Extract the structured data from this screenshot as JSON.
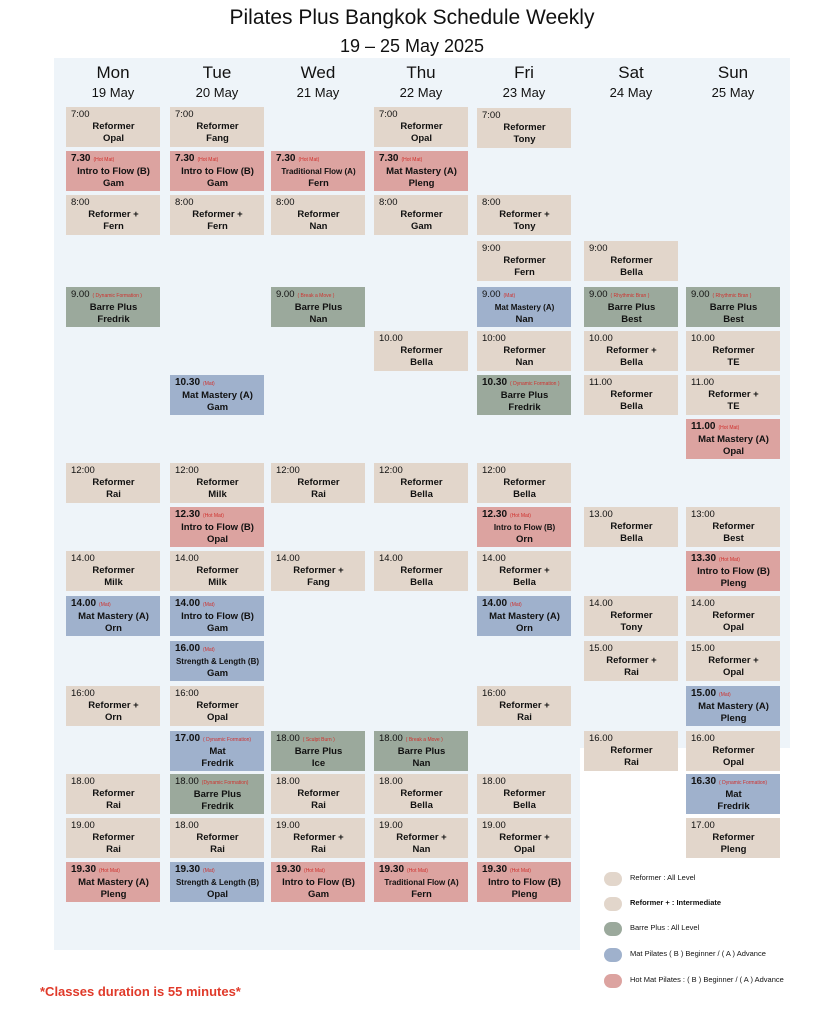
{
  "title": "Pilates Plus Bangkok Schedule Weekly",
  "subtitle": "19 – 25  May 2025",
  "days": [
    {
      "name": "Mon",
      "date": "19 May"
    },
    {
      "name": "Tue",
      "date": "20 May"
    },
    {
      "name": "Wed",
      "date": "21 May"
    },
    {
      "name": "Thu",
      "date": "22 May"
    },
    {
      "name": "Fri",
      "date": "23 May"
    },
    {
      "name": "Sat",
      "date": "24 May"
    },
    {
      "name": "Sun",
      "date": "25 May"
    }
  ],
  "classes": [
    {
      "day": 0,
      "time": "7:00",
      "bold": false,
      "tag": "",
      "name": "Reformer",
      "instructor": "Opal",
      "kind": "ref"
    },
    {
      "day": 0,
      "time": "7.30",
      "bold": true,
      "tag": "(Hot Mat)",
      "name": "Intro to Flow (B)",
      "instructor": "Gam",
      "kind": "hot"
    },
    {
      "day": 0,
      "time": "8:00",
      "bold": false,
      "tag": "",
      "name": "Reformer +",
      "instructor": "Fern",
      "kind": "rplus"
    },
    {
      "day": 0,
      "time": "9.00",
      "bold": false,
      "tag": "( Dynamic Formation )",
      "name": "Barre Plus",
      "instructor": "Fredrik",
      "kind": "barre"
    },
    {
      "day": 0,
      "time": "12:00",
      "bold": false,
      "tag": "",
      "name": "Reformer",
      "instructor": "Rai",
      "kind": "ref"
    },
    {
      "day": 0,
      "time": "14.00",
      "bold": false,
      "tag": "",
      "name": "Reformer",
      "instructor": "Milk",
      "kind": "ref"
    },
    {
      "day": 0,
      "time": "14.00",
      "bold": true,
      "tag": "(Mat)",
      "name": "Mat Mastery (A)",
      "instructor": "Orn",
      "kind": "mat"
    },
    {
      "day": 0,
      "time": "16:00",
      "bold": false,
      "tag": "",
      "name": "Reformer +",
      "instructor": "Orn",
      "kind": "rplus"
    },
    {
      "day": 0,
      "time": "18.00",
      "bold": false,
      "tag": "",
      "name": "Reformer",
      "instructor": "Rai",
      "kind": "ref"
    },
    {
      "day": 0,
      "time": "19.00",
      "bold": false,
      "tag": "",
      "name": "Reformer",
      "instructor": "Rai",
      "kind": "ref"
    },
    {
      "day": 0,
      "time": "19.30",
      "bold": true,
      "tag": "(Hot Mat)",
      "name": "Mat Mastery (A)",
      "instructor": "Pleng",
      "kind": "hot"
    },
    {
      "day": 1,
      "time": "7:00",
      "bold": false,
      "tag": "",
      "name": "Reformer",
      "instructor": "Fang",
      "kind": "ref"
    },
    {
      "day": 1,
      "time": "7.30",
      "bold": true,
      "tag": "(Hot Mat)",
      "name": "Intro to Flow (B)",
      "instructor": "Gam",
      "kind": "hot"
    },
    {
      "day": 1,
      "time": "8:00",
      "bold": false,
      "tag": "",
      "name": "Reformer +",
      "instructor": "Fern",
      "kind": "rplus"
    },
    {
      "day": 1,
      "time": "10.30",
      "bold": true,
      "tag": "(Mat)",
      "name": "Mat Mastery (A)",
      "instructor": "Gam",
      "kind": "mat"
    },
    {
      "day": 1,
      "time": "12:00",
      "bold": false,
      "tag": "",
      "name": "Reformer",
      "instructor": "Milk",
      "kind": "ref"
    },
    {
      "day": 1,
      "time": "12.30",
      "bold": true,
      "tag": "(Hot Mat)",
      "name": "Intro to Flow (B)",
      "instructor": "Opal",
      "kind": "hot"
    },
    {
      "day": 1,
      "time": "14.00",
      "bold": false,
      "tag": "",
      "name": "Reformer",
      "instructor": "Milk",
      "kind": "ref"
    },
    {
      "day": 1,
      "time": "14.00",
      "bold": true,
      "tag": "(Mat)",
      "name": "Intro to Flow (B)",
      "instructor": "Gam",
      "kind": "mat"
    },
    {
      "day": 1,
      "time": "16.00",
      "bold": true,
      "tag": "(Mat)",
      "name": "Strength & Length (B)",
      "instructor": "Gam",
      "kind": "mat",
      "small": true
    },
    {
      "day": 1,
      "time": "16:00",
      "bold": false,
      "tag": "",
      "name": "Reformer",
      "instructor": "Opal",
      "kind": "ref"
    },
    {
      "day": 1,
      "time": "17.00",
      "bold": true,
      "tag": "( Dynamic Formation)",
      "name": "Mat",
      "instructor": "Fredrik",
      "kind": "mat"
    },
    {
      "day": 1,
      "time": "18.00",
      "bold": false,
      "tag": "(Dynamic Formation)",
      "name": "Barre Plus",
      "instructor": "Fredrik",
      "kind": "barre"
    },
    {
      "day": 1,
      "time": "18.00",
      "bold": false,
      "tag": "",
      "name": "Reformer",
      "instructor": "Rai",
      "kind": "ref"
    },
    {
      "day": 1,
      "time": "19.30",
      "bold": true,
      "tag": "(Mat)",
      "name": "Strength & Length (B)",
      "instructor": "Opal",
      "kind": "mat",
      "small": true
    },
    {
      "day": 2,
      "time": "7.30",
      "bold": true,
      "tag": "(Hot Mat)",
      "name": "Traditional Flow (A)",
      "instructor": "Fern",
      "kind": "hot",
      "small": true
    },
    {
      "day": 2,
      "time": "8:00",
      "bold": false,
      "tag": "",
      "name": "Reformer",
      "instructor": "Nan",
      "kind": "ref"
    },
    {
      "day": 2,
      "time": "9.00",
      "bold": false,
      "tag": "( Break a Move )",
      "name": "Barre Plus",
      "instructor": "Nan",
      "kind": "barre"
    },
    {
      "day": 2,
      "time": "12:00",
      "bold": false,
      "tag": "",
      "name": "Reformer",
      "instructor": "Rai",
      "kind": "ref"
    },
    {
      "day": 2,
      "time": "14.00",
      "bold": false,
      "tag": "",
      "name": "Reformer +",
      "instructor": "Fang",
      "kind": "rplus"
    },
    {
      "day": 2,
      "time": "18.00",
      "bold": false,
      "tag": "( Sculpt Burn )",
      "name": "Barre Plus",
      "instructor": "Ice",
      "kind": "barre"
    },
    {
      "day": 2,
      "time": "18.00",
      "bold": false,
      "tag": "",
      "name": "Reformer",
      "instructor": "Rai",
      "kind": "ref"
    },
    {
      "day": 2,
      "time": "19.00",
      "bold": false,
      "tag": "",
      "name": "Reformer +",
      "instructor": "Rai",
      "kind": "rplus"
    },
    {
      "day": 2,
      "time": "19.30",
      "bold": true,
      "tag": "(Hot Mat)",
      "name": "Intro to Flow (B)",
      "instructor": "Gam",
      "kind": "hot"
    },
    {
      "day": 3,
      "time": "7:00",
      "bold": false,
      "tag": "",
      "name": "Reformer",
      "instructor": "Opal",
      "kind": "ref"
    },
    {
      "day": 3,
      "time": "7.30",
      "bold": true,
      "tag": "(Hot Mat)",
      "name": "Mat Mastery (A)",
      "instructor": "Pleng",
      "kind": "hot"
    },
    {
      "day": 3,
      "time": "8:00",
      "bold": false,
      "tag": "",
      "name": "Reformer",
      "instructor": "Gam",
      "kind": "ref"
    },
    {
      "day": 3,
      "time": "10.00",
      "bold": false,
      "tag": "",
      "name": "Reformer",
      "instructor": "Bella",
      "kind": "ref"
    },
    {
      "day": 3,
      "time": "12:00",
      "bold": false,
      "tag": "",
      "name": "Reformer",
      "instructor": "Bella",
      "kind": "ref"
    },
    {
      "day": 3,
      "time": "14.00",
      "bold": false,
      "tag": "",
      "name": "Reformer",
      "instructor": "Bella",
      "kind": "ref"
    },
    {
      "day": 3,
      "time": "18.00",
      "bold": false,
      "tag": "( Break a Move )",
      "name": "Barre Plus",
      "instructor": "Nan",
      "kind": "barre"
    },
    {
      "day": 3,
      "time": "18.00",
      "bold": false,
      "tag": "",
      "name": "Reformer",
      "instructor": "Bella",
      "kind": "ref"
    },
    {
      "day": 3,
      "time": "19.00",
      "bold": false,
      "tag": "",
      "name": "Reformer +",
      "instructor": "Nan",
      "kind": "rplus"
    },
    {
      "day": 3,
      "time": "19.30",
      "bold": true,
      "tag": "(Hot Mat)",
      "name": "Traditional Flow (A)",
      "instructor": "Fern",
      "kind": "hot",
      "small": true
    },
    {
      "day": 4,
      "time": "7:00",
      "bold": false,
      "tag": "",
      "name": "Reformer",
      "instructor": "Tony",
      "kind": "ref"
    },
    {
      "day": 4,
      "time": "8:00",
      "bold": false,
      "tag": "",
      "name": "Reformer +",
      "instructor": "Tony",
      "kind": "rplus"
    },
    {
      "day": 4,
      "time": "9:00",
      "bold": false,
      "tag": "",
      "name": "Reformer",
      "instructor": "Fern",
      "kind": "ref"
    },
    {
      "day": 4,
      "time": "9.00",
      "bold": false,
      "tag": "(Mat)",
      "name": "Mat Mastery (A)",
      "instructor": "Nan",
      "kind": "mat",
      "small": true
    },
    {
      "day": 4,
      "time": "10:00",
      "bold": false,
      "tag": "",
      "name": "Reformer",
      "instructor": "Nan",
      "kind": "ref"
    },
    {
      "day": 4,
      "time": "10.30",
      "bold": true,
      "tag": "( Dynamic Formation )",
      "name": "Barre Plus",
      "instructor": "Fredrik",
      "kind": "barre"
    },
    {
      "day": 4,
      "time": "12:00",
      "bold": false,
      "tag": "",
      "name": "Reformer",
      "instructor": "Bella",
      "kind": "ref"
    },
    {
      "day": 4,
      "time": "12.30",
      "bold": true,
      "tag": "(Hot Mat)",
      "name": "Intro to Flow (B)",
      "instructor": "Orn",
      "kind": "hot",
      "small": true
    },
    {
      "day": 4,
      "time": "14.00",
      "bold": false,
      "tag": "",
      "name": "Reformer +",
      "instructor": "Bella",
      "kind": "rplus"
    },
    {
      "day": 4,
      "time": "14.00",
      "bold": true,
      "tag": "(Mat)",
      "name": "Mat Mastery (A)",
      "instructor": "Orn",
      "kind": "mat"
    },
    {
      "day": 4,
      "time": "16:00",
      "bold": false,
      "tag": "",
      "name": "Reformer +",
      "instructor": "Rai",
      "kind": "rplus"
    },
    {
      "day": 4,
      "time": "18.00",
      "bold": false,
      "tag": "",
      "name": "Reformer",
      "instructor": "Bella",
      "kind": "ref"
    },
    {
      "day": 4,
      "time": "19.00",
      "bold": false,
      "tag": "",
      "name": "Reformer +",
      "instructor": "Opal",
      "kind": "rplus"
    },
    {
      "day": 4,
      "time": "19.30",
      "bold": true,
      "tag": "(Hot Mat)",
      "name": "Intro to Flow (B)",
      "instructor": "Pleng",
      "kind": "hot"
    },
    {
      "day": 5,
      "time": "9:00",
      "bold": false,
      "tag": "",
      "name": "Reformer",
      "instructor": "Bella",
      "kind": "ref"
    },
    {
      "day": 5,
      "time": "9.00",
      "bold": false,
      "tag": "( Rhythmic Bran )",
      "name": "Barre Plus",
      "instructor": "Best",
      "kind": "barre"
    },
    {
      "day": 5,
      "time": "10.00",
      "bold": false,
      "tag": "",
      "name": "Reformer +",
      "instructor": "Bella",
      "kind": "rplus"
    },
    {
      "day": 5,
      "time": "11.00",
      "bold": false,
      "tag": "",
      "name": "Reformer",
      "instructor": "Bella",
      "kind": "ref"
    },
    {
      "day": 5,
      "time": "13.00",
      "bold": false,
      "tag": "",
      "name": "Reformer",
      "instructor": "Bella",
      "kind": "ref"
    },
    {
      "day": 5,
      "time": "14.00",
      "bold": false,
      "tag": "",
      "name": "Reformer",
      "instructor": "Tony",
      "kind": "ref"
    },
    {
      "day": 5,
      "time": "15.00",
      "bold": false,
      "tag": "",
      "name": "Reformer +",
      "instructor": "Rai",
      "kind": "rplus"
    },
    {
      "day": 5,
      "time": "16.00",
      "bold": false,
      "tag": "",
      "name": "Reformer",
      "instructor": "Rai",
      "kind": "ref"
    },
    {
      "day": 6,
      "time": "9.00",
      "bold": false,
      "tag": "( Rhythmic Bran )",
      "name": "Barre Plus",
      "instructor": "Best",
      "kind": "barre"
    },
    {
      "day": 6,
      "time": "10.00",
      "bold": false,
      "tag": "",
      "name": "Reformer",
      "instructor": "TE",
      "kind": "ref"
    },
    {
      "day": 6,
      "time": "11.00",
      "bold": false,
      "tag": "",
      "name": "Reformer +",
      "instructor": "TE",
      "kind": "rplus"
    },
    {
      "day": 6,
      "time": "11.00",
      "bold": true,
      "tag": "(Hot Mat)",
      "name": "Mat Mastery (A)",
      "instructor": "Opal",
      "kind": "hot"
    },
    {
      "day": 6,
      "time": "13:00",
      "bold": false,
      "tag": "",
      "name": "Reformer",
      "instructor": "Best",
      "kind": "ref"
    },
    {
      "day": 6,
      "time": "13.30",
      "bold": true,
      "tag": "(Hot Mat)",
      "name": "Intro to Flow (B)",
      "instructor": "Pleng",
      "kind": "hot"
    },
    {
      "day": 6,
      "time": "14.00",
      "bold": false,
      "tag": "",
      "name": "Reformer",
      "instructor": "Opal",
      "kind": "ref"
    },
    {
      "day": 6,
      "time": "15.00",
      "bold": false,
      "tag": "",
      "name": "Reformer +",
      "instructor": "Opal",
      "kind": "rplus"
    },
    {
      "day": 6,
      "time": "15.00",
      "bold": true,
      "tag": "(Mat)",
      "name": "Mat Mastery (A)",
      "instructor": "Pleng",
      "kind": "mat"
    },
    {
      "day": 6,
      "time": "16.00",
      "bold": false,
      "tag": "",
      "name": "Reformer",
      "instructor": "Opal",
      "kind": "ref"
    },
    {
      "day": 6,
      "time": "16.30",
      "bold": true,
      "tag": "( Dynamic Formation)",
      "name": "Mat",
      "instructor": "Fredrik",
      "kind": "mat"
    },
    {
      "day": 6,
      "time": "17.00",
      "bold": false,
      "tag": "",
      "name": "Reformer",
      "instructor": "Pleng",
      "kind": "ref"
    }
  ],
  "legend": [
    {
      "kind": "ref",
      "text": "Reformer : All Level",
      "color": "#e2d6cb",
      "bold": false
    },
    {
      "kind": "rplus",
      "text": "Reformer + : Intermediate",
      "color": "#e2d6cb",
      "bold": true
    },
    {
      "kind": "barre",
      "text": "Barre Plus : All Level",
      "color": "#9ba99c",
      "bold": false
    },
    {
      "kind": "mat",
      "text": "Mat Pilates ( B ) Beginner /  ( A ) Advance",
      "color": "#9fb1cc",
      "bold": false
    },
    {
      "kind": "hot",
      "text": "Hot Mat Pilates : ( B ) Beginner /  ( A ) Advance",
      "color": "#dca3a0",
      "bold": false
    }
  ],
  "note": "*Classes duration is 55 minutes*",
  "colors": {
    "reformer": "#e2d6cb",
    "barre": "#9ba99c",
    "mat": "#9fb1cc",
    "hot": "#dca3a0",
    "tag": "#d0312d",
    "note": "#e03a2a"
  }
}
